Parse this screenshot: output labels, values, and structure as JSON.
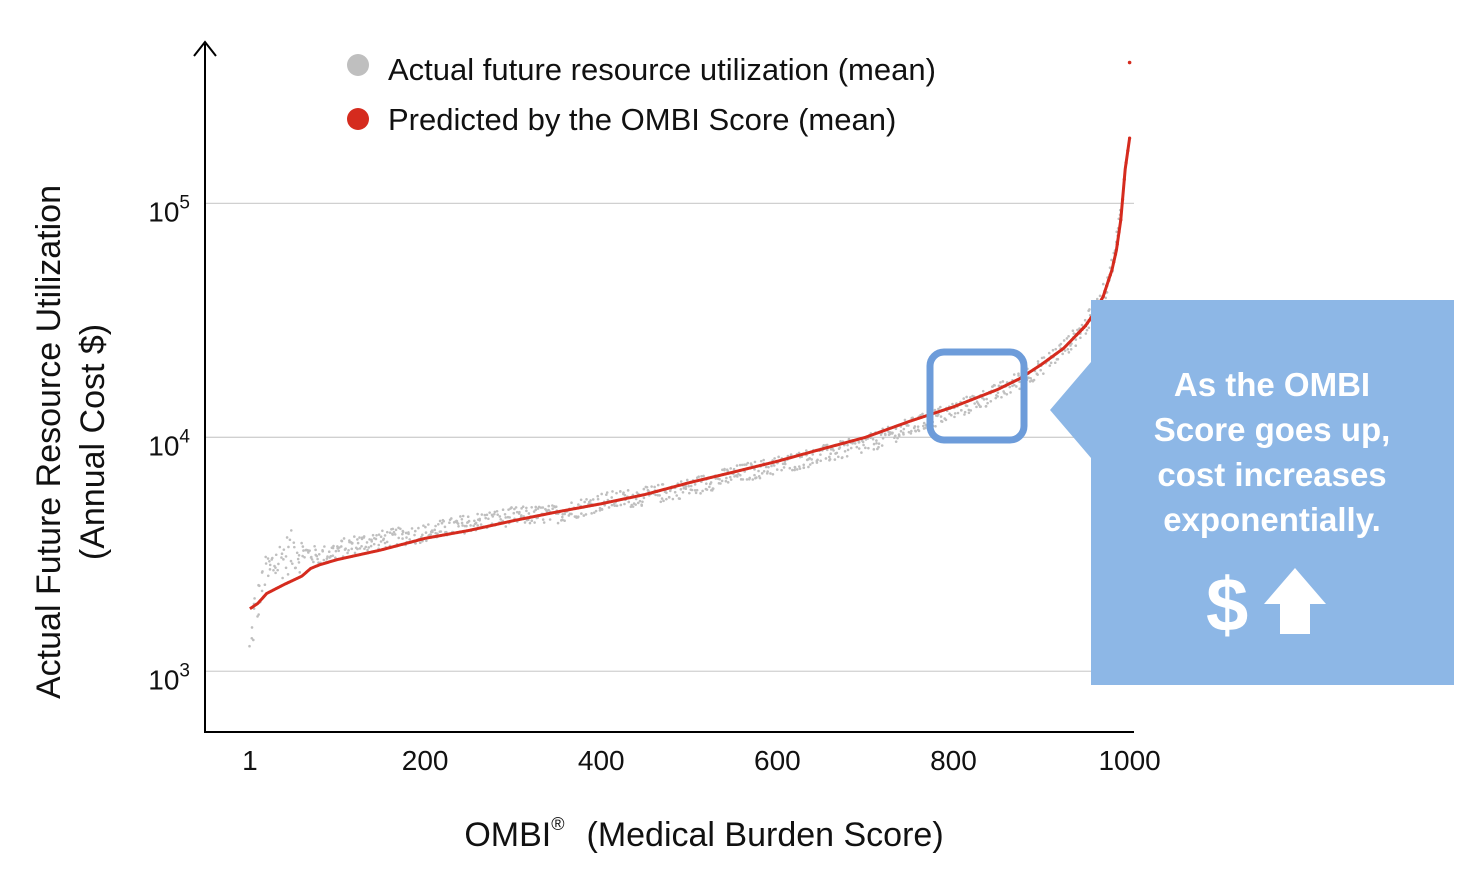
{
  "chart_data": {
    "type": "scatter",
    "xlabel": "OMBI",
    "xlabel_mark": "®",
    "xlabel_suffix": "(Medical Burden Score)",
    "ylabel_line1": "Actual Future Resource Utilization",
    "ylabel_line2": "(Annual Cost $)",
    "y_scale": "log",
    "xlim": [
      -50,
      1005
    ],
    "ylim": [
      550,
      480000
    ],
    "x_ticks": [
      {
        "value": 1,
        "label": "1"
      },
      {
        "value": 200,
        "label": "200"
      },
      {
        "value": 400,
        "label": "400"
      },
      {
        "value": 600,
        "label": "600"
      },
      {
        "value": 800,
        "label": "800"
      },
      {
        "value": 1000,
        "label": "1000"
      }
    ],
    "y_ticks": [
      {
        "value": 1000,
        "base": "10",
        "exp": "3"
      },
      {
        "value": 10000,
        "base": "10",
        "exp": "4"
      },
      {
        "value": 100000,
        "base": "10",
        "exp": "5"
      }
    ],
    "grid": "horizontal",
    "legend_position": "top",
    "series": [
      {
        "name": "Actual future resource utilization (mean)",
        "color": "#bfbfbf",
        "marker": "dot",
        "x": [
          1,
          5,
          10,
          20,
          30,
          50,
          80,
          120,
          160,
          200,
          250,
          300,
          350,
          400,
          450,
          500,
          550,
          600,
          650,
          700,
          750,
          800,
          850,
          900,
          930,
          950,
          970,
          980,
          990
        ],
        "y": [
          1200,
          1700,
          2000,
          2600,
          2900,
          3300,
          3100,
          3500,
          3700,
          3900,
          4300,
          4600,
          4700,
          5300,
          5600,
          6100,
          6900,
          7600,
          8400,
          9300,
          11000,
          13000,
          15500,
          20000,
          25000,
          30000,
          40000,
          55000,
          90000
        ]
      },
      {
        "name": "Predicted by the OMBI Score (mean)",
        "color": "#d52b1e",
        "marker": "line",
        "x": [
          1,
          10,
          20,
          40,
          60,
          70,
          80,
          100,
          150,
          200,
          250,
          300,
          350,
          400,
          450,
          500,
          550,
          600,
          650,
          700,
          750,
          800,
          850,
          875,
          900,
          925,
          950,
          960,
          970,
          980,
          985,
          990,
          995,
          1000
        ],
        "y": [
          1850,
          1950,
          2150,
          2350,
          2550,
          2750,
          2850,
          3000,
          3300,
          3700,
          4000,
          4400,
          4800,
          5200,
          5700,
          6400,
          7100,
          7900,
          8900,
          10000,
          11700,
          13500,
          16000,
          17800,
          20500,
          24000,
          30000,
          34000,
          40000,
          52000,
          63000,
          85000,
          140000,
          190000
        ]
      }
    ],
    "outliers": [
      {
        "x": 1000,
        "y": 400000
      }
    ]
  },
  "callout": {
    "lines": [
      "As the OMBI",
      "Score goes up,",
      "cost increases",
      "exponentially."
    ],
    "symbol": "$",
    "arrow_icon": "up-arrow-icon",
    "color": "#8db7e6",
    "highlight_box_color": "#6d9cda",
    "highlight_range_x": [
      790,
      890
    ]
  }
}
